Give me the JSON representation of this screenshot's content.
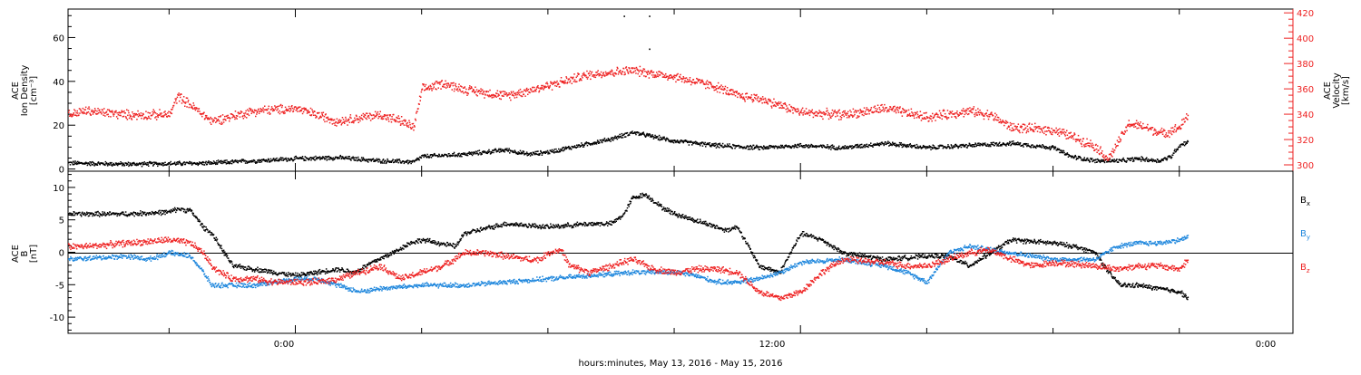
{
  "figure": {
    "xlabel": "hours:minutes, May 13, 2016 - May 15, 2016",
    "x_tick_labels": [
      "0:00",
      "12:00",
      "0:00"
    ]
  },
  "chart_data": [
    {
      "type": "scatter",
      "panel": "top",
      "x_unit": "hours since 00:00 May 14, 2016",
      "xlim": [
        -5.4,
        23.7
      ],
      "left_axis": {
        "label_lines": [
          "ACE",
          "Ion Density",
          "[cm⁻³]"
        ],
        "ylim": [
          -1,
          73
        ],
        "ticks": [
          0,
          20,
          40,
          60
        ],
        "tick_labels": [
          "0",
          "20",
          "40",
          "60"
        ]
      },
      "right_axis": {
        "label_lines": [
          "ACE",
          "Velocity",
          "[km/s]"
        ],
        "ylim": [
          295,
          423
        ],
        "ticks": [
          300,
          320,
          340,
          360,
          380,
          400,
          420
        ],
        "tick_labels": [
          "300",
          "320",
          "340",
          "360",
          "380",
          "400",
          "420"
        ],
        "color": "#ee2222"
      },
      "series": [
        {
          "axis": "left",
          "color": "#000000",
          "noise": 0.8,
          "x": [
            -5.4,
            -4,
            -2,
            -1,
            0,
            1,
            2,
            2.8,
            3,
            4,
            5,
            5.5,
            6,
            7,
            7.5,
            8,
            9,
            10,
            11,
            12,
            13,
            14,
            15,
            16,
            17,
            18,
            18.4,
            19,
            19.6,
            20,
            20.5,
            20.8,
            20.9,
            21,
            21.2
          ],
          "y": [
            3,
            2.5,
            3,
            4,
            5,
            5.5,
            4,
            3.5,
            6,
            7,
            9,
            7,
            8,
            12,
            14,
            17,
            13,
            11,
            10,
            11,
            10,
            12,
            10,
            11,
            12,
            10,
            6,
            4,
            4,
            5,
            4,
            6,
            9,
            11,
            13
          ]
        },
        {
          "axis": "right",
          "color": "#ee2222",
          "noise": 3,
          "x": [
            -5.4,
            -5,
            -4,
            -3,
            -2.8,
            -2.2,
            -2,
            -1,
            0,
            1,
            2,
            2.5,
            2.8,
            3,
            3.5,
            4,
            5,
            6,
            7,
            8,
            9,
            10,
            10.5,
            11,
            12,
            13,
            14,
            15,
            16,
            16.5,
            17,
            18,
            18.5,
            19,
            19.3,
            19.8,
            20.2,
            20.6,
            21,
            21.2
          ],
          "y": [
            340,
            343,
            340,
            340,
            355,
            340,
            335,
            343,
            345,
            335,
            340,
            335,
            330,
            360,
            365,
            360,
            355,
            363,
            372,
            375,
            370,
            362,
            355,
            353,
            342,
            340,
            345,
            338,
            343,
            340,
            330,
            328,
            322,
            315,
            305,
            333,
            330,
            325,
            330,
            340
          ]
        },
        {
          "axis": "left",
          "color": "#000000",
          "noise": 0,
          "x": [
            7.8,
            8.4,
            8.4
          ],
          "y": [
            70,
            70,
            55
          ]
        }
      ]
    },
    {
      "type": "scatter",
      "panel": "bottom",
      "x_unit": "hours since 00:00 May 14, 2016",
      "xlim": [
        -5.4,
        23.7
      ],
      "ylim": [
        -12.5,
        12.5
      ],
      "axis": {
        "label_lines": [
          "ACE",
          "B",
          "[nT]"
        ],
        "ticks": [
          -10,
          -5,
          0,
          5,
          10
        ],
        "tick_labels": [
          "-10",
          "-5",
          "0",
          "5",
          "10"
        ]
      },
      "legend_position": "right",
      "series": [
        {
          "name": "B",
          "subscript": "x",
          "color": "#000000",
          "noise": 0.3,
          "x": [
            -5.4,
            -4,
            -3,
            -2.8,
            -2.5,
            -2.2,
            -2,
            -1.5,
            -1,
            0,
            1,
            1.4,
            1.8,
            2.3,
            2.7,
            3,
            3.4,
            3.8,
            4,
            5,
            6,
            7,
            7.5,
            7.8,
            8,
            8.3,
            8.7,
            9,
            9.5,
            10,
            10.2,
            10.5,
            11,
            11.5,
            12,
            12.5,
            13,
            14,
            15,
            15.5,
            16,
            17,
            18,
            18.5,
            19,
            19.3,
            19.6,
            20,
            20.5,
            21,
            21.2
          ],
          "y": [
            6,
            6,
            6.3,
            6.8,
            6.5,
            4,
            3,
            -2,
            -2.5,
            -3.5,
            -2.5,
            -3,
            -1.5,
            0,
            1.5,
            2,
            1.5,
            1,
            3,
            4.5,
            4,
            4.5,
            4.5,
            6,
            8.5,
            9,
            7,
            6,
            5,
            4,
            3.5,
            4,
            -2,
            -3,
            3,
            2,
            0,
            -1,
            -0.5,
            -0.5,
            -2,
            2,
            1.5,
            1,
            0,
            -3,
            -5,
            -5,
            -5.5,
            -6,
            -7
          ]
        },
        {
          "name": "B",
          "subscript": "y",
          "color": "#1f87dd",
          "noise": 0.3,
          "x": [
            -5.4,
            -4,
            -3.5,
            -3,
            -2.5,
            -2.2,
            -2,
            -1.5,
            -1,
            0,
            0.5,
            1,
            1.5,
            2,
            3,
            4,
            5,
            6,
            7,
            8,
            9,
            9.5,
            10,
            10.5,
            11,
            11.5,
            12,
            13,
            14,
            14.5,
            15,
            15.5,
            16,
            17,
            18,
            18.5,
            19,
            19.5,
            20,
            20.5,
            21,
            21.2
          ],
          "y": [
            -1,
            -0.5,
            -1,
            0,
            -0.5,
            -3,
            -5,
            -5,
            -5,
            -4,
            -4,
            -5,
            -6,
            -5.5,
            -5,
            -5,
            -4.5,
            -4,
            -3.5,
            -3,
            -3,
            -3.5,
            -4.5,
            -4.5,
            -4,
            -3,
            -1.5,
            -1,
            -2,
            -3,
            -4.5,
            0,
            1,
            0,
            -1,
            -1,
            -1,
            1,
            1.5,
            1.5,
            2,
            2.5
          ]
        },
        {
          "name": "B",
          "subscript": "z",
          "color": "#ee2222",
          "noise": 0.4,
          "x": [
            -5.4,
            -5,
            -4,
            -3,
            -2.5,
            -2.2,
            -2,
            -1.8,
            -1.5,
            -1,
            -0.5,
            0,
            0.5,
            1,
            1.5,
            2,
            2.5,
            3,
            3.5,
            4,
            4.5,
            5,
            5.5,
            5.8,
            6,
            6.3,
            6.5,
            7,
            7.5,
            8,
            8.5,
            9,
            9.5,
            10,
            10.5,
            11,
            11.5,
            12,
            12.5,
            13,
            14,
            14.5,
            15,
            16,
            16.5,
            17,
            17.5,
            18,
            19,
            19.5,
            20,
            20.5,
            21,
            21.2
          ],
          "y": [
            1,
            1,
            1.5,
            2,
            1.5,
            0,
            -2,
            -3,
            -4,
            -4,
            -4.5,
            -4.5,
            -4.5,
            -4,
            -3,
            -2,
            -4,
            -3,
            -2,
            0,
            0,
            -0.5,
            -1,
            -1,
            0,
            0.5,
            -2,
            -3,
            -2,
            -1,
            -2.5,
            -3,
            -2.5,
            -2.5,
            -3,
            -6,
            -7,
            -6,
            -3,
            -1,
            -1.5,
            -2,
            -2,
            0,
            0.5,
            -1,
            -2,
            -1.5,
            -2,
            -2.5,
            -2,
            -2,
            -2.5,
            -1
          ]
        }
      ]
    }
  ]
}
